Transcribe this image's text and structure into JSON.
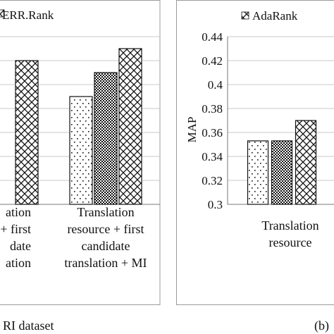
{
  "chart_data": [
    {
      "type": "bar",
      "panel_label": "",
      "caption": "RI dataset",
      "legend": {
        "visible_entries": [
          "ERR.Rank"
        ],
        "placement": "top"
      },
      "ylim": [
        0.3,
        0.44
      ],
      "categories": [
        {
          "lines": [
            "ation",
            "+ first",
            "date",
            "ation"
          ]
        },
        {
          "lines": [
            "Translation",
            "resource + first",
            "candidate",
            "translation + MI"
          ]
        }
      ],
      "series": [
        {
          "pattern": "dots",
          "values": [
            null,
            0.39
          ]
        },
        {
          "pattern": "checker",
          "values": [
            null,
            0.41
          ]
        },
        {
          "name": "ERR.Rank",
          "pattern": "diamond",
          "values": [
            0.42,
            0.43
          ]
        }
      ],
      "colors": {
        "axis": "#777777",
        "grid": "#c8c8c8",
        "bar_stroke": "#111111"
      }
    },
    {
      "type": "bar",
      "panel_label": "(b)",
      "caption": "",
      "legend": {
        "visible_entries": [
          "AdaRank"
        ],
        "placement": "top"
      },
      "ylabel": "MAP",
      "ylim": [
        0.3,
        0.44
      ],
      "yticks": [
        "0.3",
        "0.32",
        "0.34",
        "0.36",
        "0.38",
        "0.4",
        "0.42",
        "0.44"
      ],
      "categories": [
        {
          "lines": [
            "Translation",
            "resource"
          ]
        }
      ],
      "series": [
        {
          "pattern": "dots",
          "values": [
            0.353
          ]
        },
        {
          "pattern": "checker",
          "values": [
            0.353
          ]
        },
        {
          "name": "AdaRank",
          "pattern": "diamond",
          "values": [
            0.37
          ]
        }
      ],
      "colors": {
        "axis": "#777777",
        "grid": "#c8c8c8",
        "bar_stroke": "#111111"
      }
    }
  ]
}
